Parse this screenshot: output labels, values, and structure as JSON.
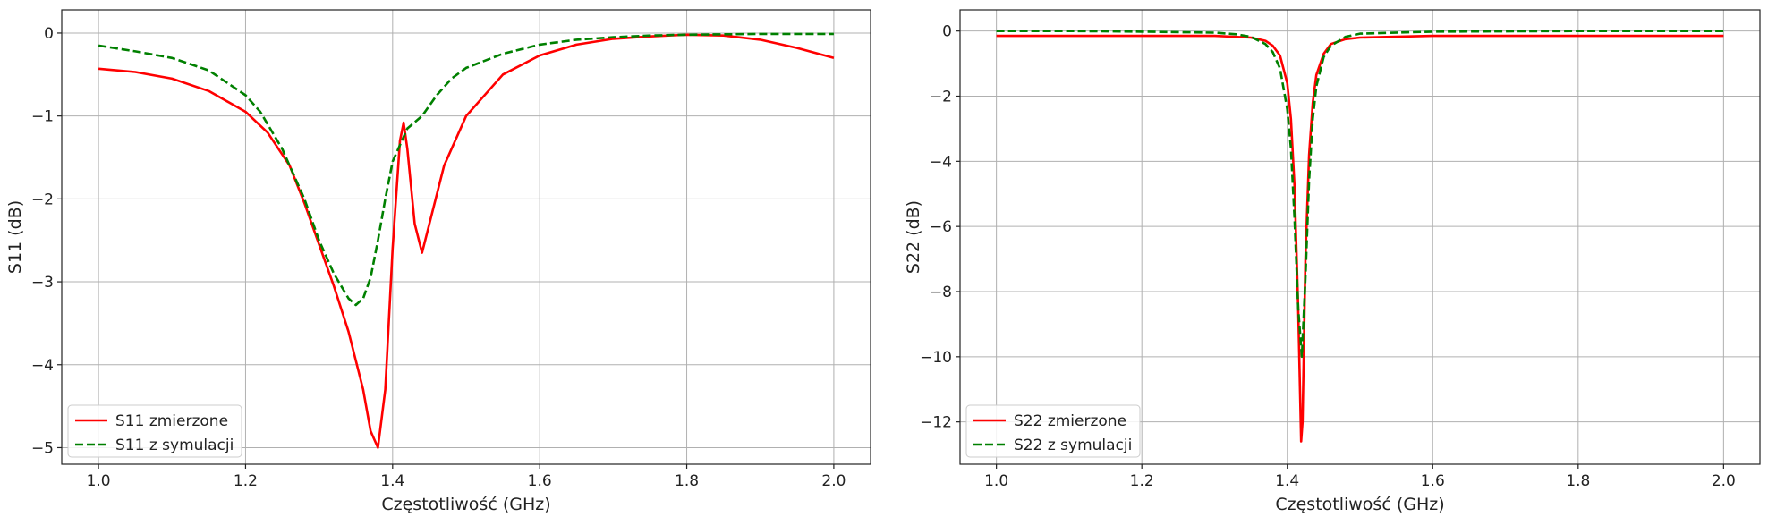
{
  "chart_data": [
    {
      "type": "line",
      "xlabel": "Częstotliwość (GHz)",
      "ylabel": "S11 (dB)",
      "xlim": [
        0.95,
        2.05
      ],
      "ylim": [
        -5.2,
        0.28
      ],
      "xticks": [
        1.0,
        1.2,
        1.4,
        1.6,
        1.8,
        2.0
      ],
      "xtick_labels": [
        "1.0",
        "1.2",
        "1.4",
        "1.6",
        "1.8",
        "2.0"
      ],
      "yticks": [
        0,
        -1,
        -2,
        -3,
        -4,
        -5
      ],
      "ytick_labels": [
        "0",
        "−1",
        "−2",
        "−3",
        "−4",
        "−5"
      ],
      "grid": true,
      "legend_position": "lower-left",
      "series": [
        {
          "name": "S11 zmierzone",
          "color": "#ff0000",
          "style": "solid",
          "x": [
            1.0,
            1.05,
            1.1,
            1.15,
            1.2,
            1.23,
            1.26,
            1.28,
            1.3,
            1.32,
            1.34,
            1.36,
            1.37,
            1.38,
            1.39,
            1.4,
            1.41,
            1.415,
            1.42,
            1.43,
            1.44,
            1.45,
            1.47,
            1.5,
            1.55,
            1.6,
            1.65,
            1.7,
            1.75,
            1.8,
            1.85,
            1.9,
            1.95,
            2.0
          ],
          "y": [
            -0.43,
            -0.47,
            -0.55,
            -0.7,
            -0.95,
            -1.2,
            -1.6,
            -2.05,
            -2.55,
            -3.05,
            -3.6,
            -4.3,
            -4.8,
            -5.0,
            -4.3,
            -2.6,
            -1.3,
            -1.08,
            -1.4,
            -2.3,
            -2.65,
            -2.3,
            -1.6,
            -1.0,
            -0.5,
            -0.27,
            -0.14,
            -0.07,
            -0.04,
            -0.02,
            -0.03,
            -0.08,
            -0.18,
            -0.3
          ]
        },
        {
          "name": "S11 z symulacji",
          "color": "#008000",
          "style": "dashed",
          "x": [
            1.0,
            1.05,
            1.1,
            1.15,
            1.2,
            1.22,
            1.25,
            1.28,
            1.3,
            1.32,
            1.34,
            1.35,
            1.36,
            1.37,
            1.38,
            1.39,
            1.4,
            1.42,
            1.44,
            1.46,
            1.48,
            1.5,
            1.55,
            1.6,
            1.65,
            1.7,
            1.75,
            1.8,
            1.9,
            2.0
          ],
          "y": [
            -0.15,
            -0.22,
            -0.3,
            -0.45,
            -0.75,
            -0.95,
            -1.4,
            -2.0,
            -2.5,
            -2.9,
            -3.2,
            -3.28,
            -3.2,
            -2.95,
            -2.5,
            -2.0,
            -1.55,
            -1.15,
            -1.0,
            -0.75,
            -0.55,
            -0.42,
            -0.25,
            -0.14,
            -0.08,
            -0.05,
            -0.03,
            -0.02,
            -0.01,
            -0.01
          ]
        }
      ]
    },
    {
      "type": "line",
      "xlabel": "Częstotliwość (GHz)",
      "ylabel": "S22 (dB)",
      "xlim": [
        0.95,
        2.05
      ],
      "ylim": [
        -13.3,
        0.65
      ],
      "xticks": [
        1.0,
        1.2,
        1.4,
        1.6,
        1.8,
        2.0
      ],
      "xtick_labels": [
        "1.0",
        "1.2",
        "1.4",
        "1.6",
        "1.8",
        "2.0"
      ],
      "yticks": [
        0,
        -2,
        -4,
        -6,
        -8,
        -10,
        -12
      ],
      "ytick_labels": [
        "0",
        "−2",
        "−4",
        "−6",
        "−8",
        "−10",
        "−12"
      ],
      "grid": true,
      "legend_position": "lower-left",
      "series": [
        {
          "name": "S22 zmierzone",
          "color": "#ff0000",
          "style": "solid",
          "x": [
            1.0,
            1.1,
            1.2,
            1.3,
            1.35,
            1.37,
            1.38,
            1.39,
            1.4,
            1.405,
            1.41,
            1.415,
            1.419,
            1.421,
            1.425,
            1.43,
            1.435,
            1.44,
            1.45,
            1.46,
            1.48,
            1.5,
            1.6,
            1.7,
            1.8,
            1.9,
            2.0
          ],
          "y": [
            -0.15,
            -0.15,
            -0.15,
            -0.15,
            -0.2,
            -0.3,
            -0.45,
            -0.75,
            -1.6,
            -2.7,
            -4.8,
            -8.5,
            -12.6,
            -12.0,
            -7.0,
            -3.8,
            -2.2,
            -1.35,
            -0.7,
            -0.4,
            -0.25,
            -0.2,
            -0.15,
            -0.15,
            -0.15,
            -0.15,
            -0.15
          ]
        },
        {
          "name": "S22 z symulacji",
          "color": "#008000",
          "style": "dashed",
          "x": [
            1.0,
            1.1,
            1.2,
            1.3,
            1.33,
            1.35,
            1.37,
            1.38,
            1.39,
            1.4,
            1.405,
            1.41,
            1.415,
            1.42,
            1.425,
            1.43,
            1.435,
            1.44,
            1.45,
            1.46,
            1.48,
            1.5,
            1.6,
            1.8,
            2.0
          ],
          "y": [
            0.0,
            0.0,
            -0.02,
            -0.05,
            -0.1,
            -0.18,
            -0.4,
            -0.65,
            -1.15,
            -2.4,
            -3.6,
            -5.8,
            -8.5,
            -10.0,
            -7.6,
            -4.6,
            -2.7,
            -1.7,
            -0.8,
            -0.45,
            -0.18,
            -0.08,
            -0.02,
            0.0,
            0.0
          ]
        }
      ]
    }
  ]
}
